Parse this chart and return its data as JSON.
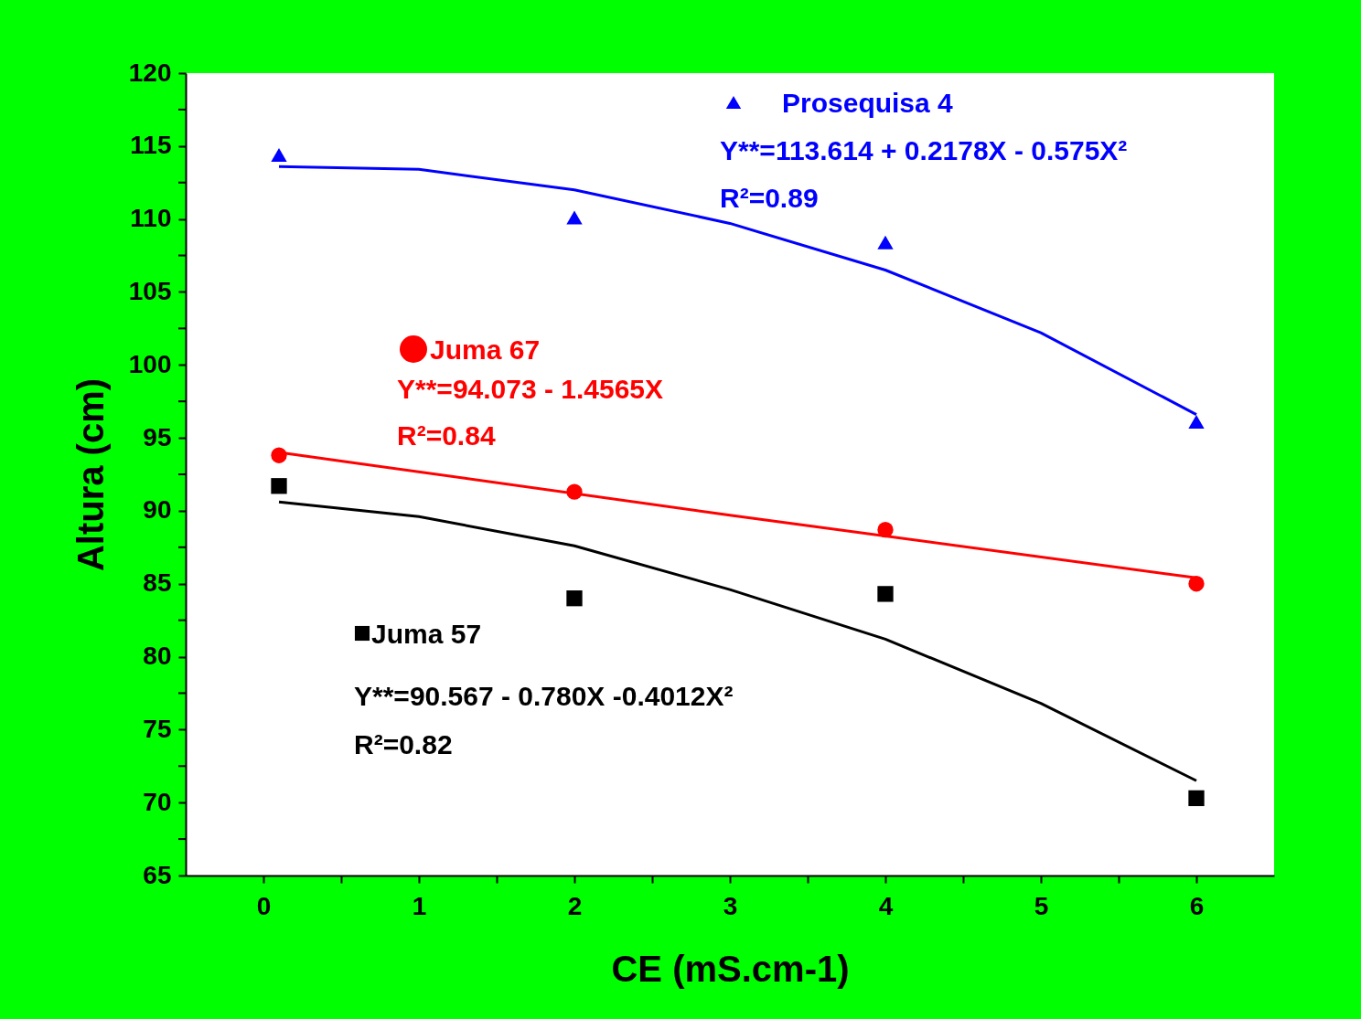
{
  "chart_data": {
    "type": "scatter",
    "xlabel": "CE  (mS.cm-1)",
    "ylabel": "Altura (cm)",
    "xlim": [
      -0.5,
      6.5
    ],
    "ylim": [
      65,
      120
    ],
    "xticks": [
      0,
      {
        "value": 0.5,
        "label": null
      },
      1,
      {
        "value": 1.5,
        "label": null
      },
      2,
      {
        "value": 2.5,
        "label": null
      },
      3,
      {
        "value": 3.5,
        "label": null
      },
      4,
      {
        "value": 4.5,
        "label": null
      },
      5,
      {
        "value": 5.5,
        "label": null
      },
      6
    ],
    "yticks": [
      65,
      {
        "value": 67.5,
        "label": null
      },
      70,
      {
        "value": 72.5,
        "label": null
      },
      75,
      {
        "value": 77.5,
        "label": null
      },
      80,
      {
        "value": 82.5,
        "label": null
      },
      85,
      {
        "value": 87.5,
        "label": null
      },
      90,
      {
        "value": 92.5,
        "label": null
      },
      95,
      {
        "value": 97.5,
        "label": null
      },
      100,
      {
        "value": 102.5,
        "label": null
      },
      105,
      {
        "value": 107.5,
        "label": null
      },
      110,
      {
        "value": 112.5,
        "label": null
      },
      115,
      {
        "value": 117.5,
        "label": null
      },
      120
    ],
    "grid": false,
    "legend": "top",
    "series": [
      {
        "name": "Prosequisa 4",
        "type": "scatter",
        "marker": "triangle",
        "color": "#0000ff",
        "x": [
          0.1,
          2,
          4,
          6
        ],
        "values": [
          114.4,
          110.1,
          108.4,
          96.1
        ]
      },
      {
        "name": "Juma 67",
        "type": "scatter",
        "marker": "circle",
        "color": "#ff0000",
        "x": [
          0.1,
          2,
          4,
          6
        ],
        "values": [
          93.8,
          91.3,
          88.7,
          85.0
        ]
      },
      {
        "name": "Juma 57",
        "type": "scatter",
        "marker": "square",
        "color": "#000000",
        "x": [
          0.1,
          2,
          4,
          6
        ],
        "values": [
          91.7,
          84.0,
          84.3,
          70.3
        ]
      },
      {
        "type": "line",
        "marker": "none",
        "color": "#0000ff",
        "x": [
          0.1,
          1,
          2,
          3,
          4,
          5,
          6
        ],
        "values": [
          113.6,
          113.4,
          112.0,
          109.7,
          106.5,
          102.2,
          96.6
        ]
      },
      {
        "type": "line",
        "marker": "none",
        "color": "#ff0000",
        "x": [
          0.1,
          3,
          6
        ],
        "values": [
          94.0,
          89.7,
          85.4
        ]
      },
      {
        "type": "line",
        "marker": "none",
        "color": "#000000",
        "x": [
          0.1,
          1,
          2,
          3,
          4,
          5,
          6
        ],
        "values": [
          90.6,
          89.6,
          87.6,
          84.6,
          81.2,
          76.8,
          71.5
        ]
      }
    ],
    "annotations": [
      "Y**=113.614 + 0.2178X - 0.575X²",
      "R²=0.89",
      "Y**=94.073 - 1.4565X",
      "R²=0.84",
      "Y**=90.567 - 0.780X -0.4012X²",
      "R²=0.82"
    ]
  }
}
